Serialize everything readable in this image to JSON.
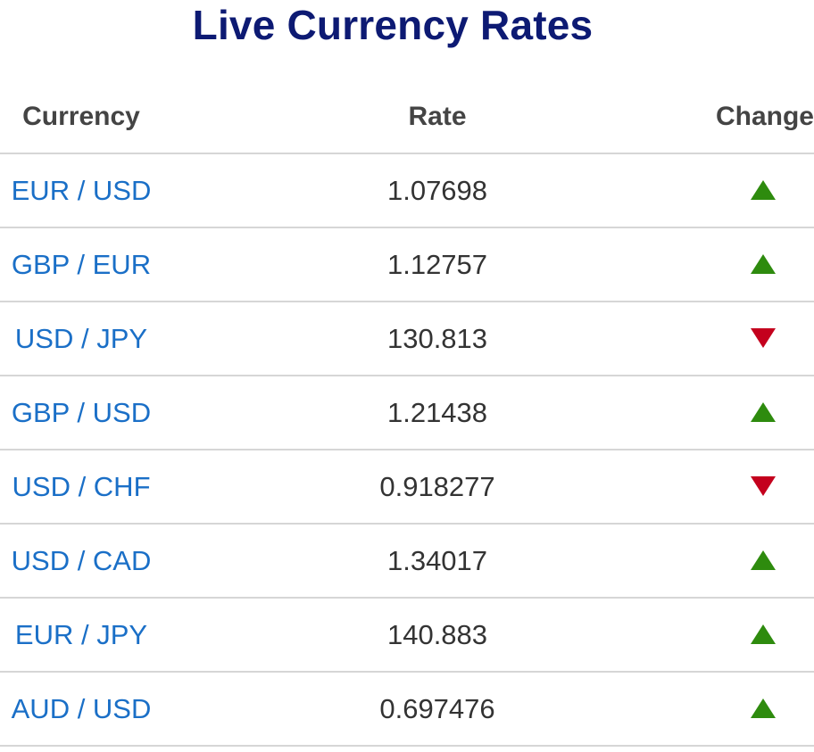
{
  "page": {
    "title": "Live Currency Rates"
  },
  "table": {
    "headers": {
      "currency": "Currency",
      "rate": "Rate",
      "change": "Change"
    },
    "rows": [
      {
        "pair": "EUR / USD",
        "rate": "1.07698",
        "change": "up"
      },
      {
        "pair": "GBP / EUR",
        "rate": "1.12757",
        "change": "up"
      },
      {
        "pair": "USD / JPY",
        "rate": "130.813",
        "change": "down"
      },
      {
        "pair": "GBP / USD",
        "rate": "1.21438",
        "change": "up"
      },
      {
        "pair": "USD / CHF",
        "rate": "0.918277",
        "change": "down"
      },
      {
        "pair": "USD / CAD",
        "rate": "1.34017",
        "change": "up"
      },
      {
        "pair": "EUR / JPY",
        "rate": "140.883",
        "change": "up"
      },
      {
        "pair": "AUD / USD",
        "rate": "0.697476",
        "change": "up"
      }
    ]
  },
  "icons": {
    "up": "triangle-up-icon",
    "down": "triangle-down-icon"
  },
  "colors": {
    "title": "#0d1a73",
    "pair_link": "#1a6fc7",
    "up": "#2e8b0e",
    "down": "#c4001d",
    "divider": "#d6d6d6"
  }
}
